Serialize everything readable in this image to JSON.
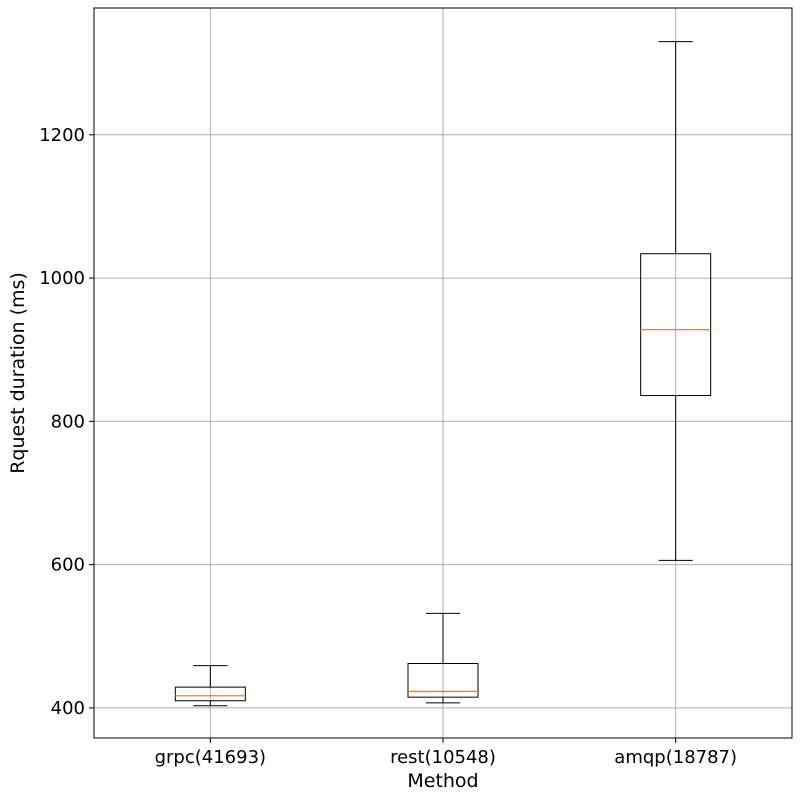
{
  "chart_data": {
    "type": "box",
    "title": "",
    "xlabel": "Method",
    "ylabel": "Rquest duration (ms)",
    "ylim": [
      358,
      1377
    ],
    "yticks": [
      400,
      600,
      800,
      1000,
      1200
    ],
    "grid": true,
    "categories": [
      "grpc(41693)",
      "rest(10548)",
      "amqp(18787)"
    ],
    "boxes": [
      {
        "whisker_low": 403,
        "q1": 410,
        "median": 417,
        "q3": 429,
        "whisker_high": 459
      },
      {
        "whisker_low": 407,
        "q1": 415,
        "median": 423,
        "q3": 462,
        "whisker_high": 532
      },
      {
        "whisker_low": 606,
        "q1": 836,
        "median": 928,
        "q3": 1034,
        "whisker_high": 1330
      }
    ],
    "colors": {
      "median": "#ff7f0e",
      "box": "#000000",
      "grid": "#b0b0b0"
    }
  }
}
